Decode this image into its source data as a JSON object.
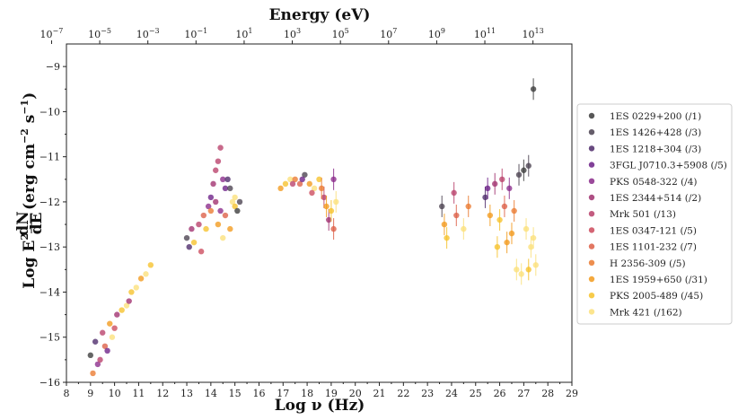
{
  "chart_data": {
    "type": "scatter",
    "title": "",
    "xlabel": "Log ν (Hz)",
    "ylabel": "Log E²dN/dE (erg cm⁻² s⁻¹)",
    "ylabel_main": "Log E",
    "ylabel_sup": "2",
    "ylabel_frac_num": "dN",
    "ylabel_frac_den": "dE",
    "ylabel_units": "(erg cm",
    "ylabel_units_sup1": "−2",
    "ylabel_units_mid": " s",
    "ylabel_units_sup2": "−1",
    "ylabel_units_end": ")",
    "top_axis_label": "Energy (eV)",
    "xlim": [
      8,
      29
    ],
    "ylim": [
      -16,
      -8.5
    ],
    "x_ticks": [
      8,
      9,
      10,
      11,
      12,
      13,
      14,
      15,
      16,
      17,
      18,
      19,
      20,
      21,
      22,
      23,
      24,
      25,
      26,
      27,
      28,
      29
    ],
    "y_ticks": [
      -16,
      -15,
      -14,
      -13,
      -12,
      -11,
      -10,
      -9
    ],
    "y_tick_labels": [
      "−16",
      "−15",
      "−14",
      "−13",
      "−12",
      "−11",
      "−10",
      "−9"
    ],
    "top_ticks": [
      {
        "base": "10",
        "exp": "−7",
        "energy_exp": -7
      },
      {
        "base": "10",
        "exp": "−5",
        "energy_exp": -5
      },
      {
        "base": "10",
        "exp": "−3",
        "energy_exp": -3
      },
      {
        "base": "10",
        "exp": "−1",
        "energy_exp": -1
      },
      {
        "base": "10",
        "exp": "1",
        "energy_exp": 1
      },
      {
        "base": "10",
        "exp": "3",
        "energy_exp": 3
      },
      {
        "base": "10",
        "exp": "5",
        "energy_exp": 5
      },
      {
        "base": "10",
        "exp": "7",
        "energy_exp": 7
      },
      {
        "base": "10",
        "exp": "9",
        "energy_exp": 9
      },
      {
        "base": "10",
        "exp": "11",
        "energy_exp": 11
      },
      {
        "base": "10",
        "exp": "13",
        "energy_exp": 13
      }
    ],
    "legend_position": "right",
    "series": [
      {
        "name": "1ES 0229+200 (/1)",
        "color": "#3a3a3a"
      },
      {
        "name": "1ES 1426+428 (/3)",
        "color": "#4a4150"
      },
      {
        "name": "1ES 1218+304 (/3)",
        "color": "#4d2a6a"
      },
      {
        "name": "3FGL J0710.3+5908 (/5)",
        "color": "#6b1f86"
      },
      {
        "name": "PKS 0548-322 (/4)",
        "color": "#8a2a8a"
      },
      {
        "name": "1ES 2344+514 (/2)",
        "color": "#a0306e"
      },
      {
        "name": "Mrk 501 (/13)",
        "color": "#b8406a"
      },
      {
        "name": "1ES 0347-121 (/5)",
        "color": "#cc4a5c"
      },
      {
        "name": "1ES 1101-232 (/7)",
        "color": "#dd5f46"
      },
      {
        "name": "H 2356-309 (/5)",
        "color": "#ea7a30"
      },
      {
        "name": "1ES 1959+650 (/31)",
        "color": "#f29a1c"
      },
      {
        "name": "PKS 2005-489 (/45)",
        "color": "#f6c22a"
      },
      {
        "name": "Mrk 421 (/162)",
        "color": "#fbe07a"
      }
    ],
    "points": [
      [
        9.0,
        -15.4,
        0
      ],
      [
        9.2,
        -15.1,
        2
      ],
      [
        9.3,
        -15.6,
        4
      ],
      [
        9.5,
        -14.9,
        6
      ],
      [
        9.6,
        -15.2,
        8
      ],
      [
        9.8,
        -14.7,
        10
      ],
      [
        9.9,
        -15.0,
        12
      ],
      [
        10.1,
        -14.5,
        5
      ],
      [
        10.3,
        -14.4,
        11
      ],
      [
        9.1,
        -15.8,
        9
      ],
      [
        10.5,
        -14.3,
        12
      ],
      [
        10.7,
        -14.0,
        11
      ],
      [
        10.9,
        -13.9,
        12
      ],
      [
        11.1,
        -13.7,
        10
      ],
      [
        11.3,
        -13.6,
        12
      ],
      [
        11.5,
        -13.4,
        11
      ],
      [
        10.6,
        -14.2,
        5
      ],
      [
        9.4,
        -15.5,
        6
      ],
      [
        9.7,
        -15.3,
        3
      ],
      [
        10.0,
        -14.8,
        7
      ],
      [
        13.0,
        -12.8,
        1
      ],
      [
        13.1,
        -13.0,
        2
      ],
      [
        13.2,
        -12.6,
        5
      ],
      [
        13.3,
        -12.9,
        11
      ],
      [
        13.5,
        -12.5,
        6
      ],
      [
        13.7,
        -12.3,
        8
      ],
      [
        13.9,
        -12.1,
        4
      ],
      [
        14.0,
        -11.9,
        3
      ],
      [
        14.1,
        -11.6,
        5
      ],
      [
        14.2,
        -11.3,
        6
      ],
      [
        14.3,
        -11.1,
        6
      ],
      [
        14.4,
        -10.8,
        6
      ],
      [
        14.5,
        -11.5,
        4
      ],
      [
        14.6,
        -11.7,
        3
      ],
      [
        14.7,
        -11.5,
        2
      ],
      [
        14.8,
        -11.7,
        1
      ],
      [
        14.9,
        -12.0,
        12
      ],
      [
        15.0,
        -12.1,
        11
      ],
      [
        15.1,
        -12.2,
        0
      ],
      [
        15.2,
        -12.0,
        1
      ],
      [
        14.3,
        -12.5,
        10
      ],
      [
        14.5,
        -12.8,
        12
      ],
      [
        13.8,
        -12.6,
        11
      ],
      [
        14.0,
        -12.2,
        9
      ],
      [
        14.6,
        -12.3,
        8
      ],
      [
        14.8,
        -12.6,
        10
      ],
      [
        15.0,
        -11.9,
        12
      ],
      [
        14.2,
        -12.0,
        5
      ],
      [
        14.4,
        -12.2,
        4
      ],
      [
        13.6,
        -13.1,
        7
      ],
      [
        16.9,
        -11.7,
        10
      ],
      [
        17.1,
        -11.6,
        11
      ],
      [
        17.3,
        -11.5,
        12
      ],
      [
        17.5,
        -11.5,
        9
      ],
      [
        17.7,
        -11.6,
        8
      ],
      [
        17.9,
        -11.4,
        1
      ],
      [
        18.1,
        -11.6,
        10
      ],
      [
        18.3,
        -11.7,
        12
      ],
      [
        18.5,
        -11.5,
        11
      ],
      [
        18.7,
        -11.9,
        6
      ],
      [
        18.8,
        -12.1,
        10
      ],
      [
        18.9,
        -12.4,
        5
      ],
      [
        19.0,
        -12.2,
        11
      ],
      [
        19.1,
        -12.6,
        8
      ],
      [
        19.2,
        -12.0,
        12
      ],
      [
        17.4,
        -11.6,
        6
      ],
      [
        17.8,
        -11.5,
        3
      ],
      [
        18.2,
        -11.8,
        7
      ],
      [
        18.6,
        -11.7,
        9
      ],
      [
        19.1,
        -11.5,
        4
      ],
      [
        23.6,
        -12.1,
        1
      ],
      [
        23.7,
        -12.5,
        10
      ],
      [
        23.8,
        -12.8,
        11
      ],
      [
        24.1,
        -11.8,
        6
      ],
      [
        24.2,
        -12.3,
        8
      ],
      [
        24.5,
        -12.6,
        12
      ],
      [
        24.7,
        -12.1,
        9
      ],
      [
        25.4,
        -11.9,
        2
      ],
      [
        25.6,
        -12.3,
        10
      ],
      [
        25.8,
        -11.6,
        5
      ],
      [
        26.0,
        -12.4,
        11
      ],
      [
        26.2,
        -12.1,
        8
      ],
      [
        26.4,
        -11.7,
        4
      ],
      [
        26.6,
        -12.2,
        9
      ],
      [
        26.8,
        -11.4,
        1
      ],
      [
        27.0,
        -11.3,
        0
      ],
      [
        27.2,
        -11.2,
        1
      ],
      [
        27.1,
        -12.6,
        12
      ],
      [
        27.3,
        -13.0,
        12
      ],
      [
        27.5,
        -13.4,
        12
      ],
      [
        26.7,
        -13.5,
        12
      ],
      [
        26.9,
        -13.6,
        12
      ],
      [
        27.2,
        -13.5,
        11
      ],
      [
        27.4,
        -12.8,
        12
      ],
      [
        26.3,
        -12.9,
        10
      ],
      [
        25.9,
        -13.0,
        11
      ],
      [
        26.5,
        -12.7,
        10
      ],
      [
        27.4,
        -9.5,
        0
      ],
      [
        25.5,
        -11.7,
        3
      ],
      [
        26.1,
        -11.5,
        6
      ]
    ]
  }
}
